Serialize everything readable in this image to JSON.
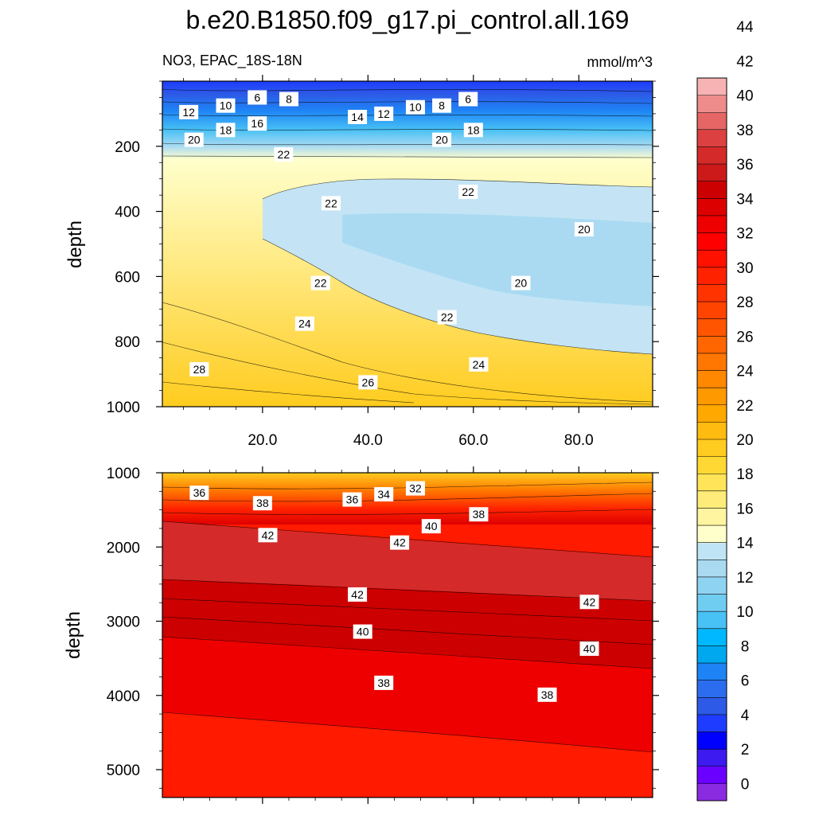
{
  "figure": {
    "title": "b.e20.B1850.f09_g17.pi_control.all.169",
    "variable_label": "NO3, EPAC_18S-18N",
    "units_label": "mmol/m^3"
  },
  "chart_data": {
    "type": "contour",
    "title": "b.e20.B1850.f09_g17.pi_control.all.169",
    "subtitle": "NO3, EPAC_18S-18N",
    "units": "mmol/m^3",
    "x_range": [
      1,
      94
    ],
    "x_ticks": [
      20,
      40,
      60,
      80
    ],
    "x_tick_labels": [
      "20.0",
      "40.0",
      "60.0",
      "80.0"
    ],
    "panels": [
      {
        "ylabel": "depth",
        "ylim": [
          1000,
          0
        ],
        "y_ticks": [
          200,
          400,
          600,
          800,
          1000
        ],
        "y_tick_labels": [
          "200",
          "400",
          "600",
          "800",
          "1000"
        ],
        "contour_labels": [
          {
            "x": 6,
            "y": 95,
            "v": "12"
          },
          {
            "x": 13,
            "y": 75,
            "v": "10"
          },
          {
            "x": 19,
            "y": 50,
            "v": "6"
          },
          {
            "x": 25,
            "y": 55,
            "v": "8"
          },
          {
            "x": 13,
            "y": 150,
            "v": "18"
          },
          {
            "x": 19,
            "y": 130,
            "v": "16"
          },
          {
            "x": 38,
            "y": 110,
            "v": "14"
          },
          {
            "x": 43,
            "y": 100,
            "v": "12"
          },
          {
            "x": 49,
            "y": 80,
            "v": "10"
          },
          {
            "x": 54,
            "y": 75,
            "v": "8"
          },
          {
            "x": 59,
            "y": 55,
            "v": "6"
          },
          {
            "x": 7,
            "y": 180,
            "v": "20"
          },
          {
            "x": 54,
            "y": 180,
            "v": "20"
          },
          {
            "x": 60,
            "y": 150,
            "v": "18"
          },
          {
            "x": 24,
            "y": 225,
            "v": "22"
          },
          {
            "x": 33,
            "y": 375,
            "v": "22"
          },
          {
            "x": 59,
            "y": 340,
            "v": "22"
          },
          {
            "x": 81,
            "y": 455,
            "v": "20"
          },
          {
            "x": 31,
            "y": 620,
            "v": "22"
          },
          {
            "x": 69,
            "y": 620,
            "v": "20"
          },
          {
            "x": 28,
            "y": 745,
            "v": "24"
          },
          {
            "x": 55,
            "y": 725,
            "v": "22"
          },
          {
            "x": 61,
            "y": 870,
            "v": "24"
          },
          {
            "x": 8,
            "y": 885,
            "v": "28"
          },
          {
            "x": 40,
            "y": 925,
            "v": "26"
          }
        ]
      },
      {
        "ylabel": "depth",
        "ylim": [
          5375,
          1000
        ],
        "y_ticks": [
          1000,
          2000,
          3000,
          4000,
          5000
        ],
        "y_tick_labels": [
          "1000",
          "2000",
          "3000",
          "4000",
          "5000"
        ],
        "contour_labels": [
          {
            "x": 8,
            "y": 1270,
            "v": "36"
          },
          {
            "x": 20,
            "y": 1410,
            "v": "38"
          },
          {
            "x": 37,
            "y": 1360,
            "v": "36"
          },
          {
            "x": 43,
            "y": 1290,
            "v": "34"
          },
          {
            "x": 49,
            "y": 1210,
            "v": "32"
          },
          {
            "x": 61,
            "y": 1560,
            "v": "38"
          },
          {
            "x": 52,
            "y": 1720,
            "v": "40"
          },
          {
            "x": 21,
            "y": 1840,
            "v": "42"
          },
          {
            "x": 46,
            "y": 1940,
            "v": "42"
          },
          {
            "x": 38,
            "y": 2640,
            "v": "42"
          },
          {
            "x": 82,
            "y": 2740,
            "v": "42"
          },
          {
            "x": 39,
            "y": 3140,
            "v": "40"
          },
          {
            "x": 82,
            "y": 3370,
            "v": "40"
          },
          {
            "x": 43,
            "y": 3830,
            "v": "38"
          },
          {
            "x": 74,
            "y": 3990,
            "v": "38"
          }
        ]
      }
    ],
    "colorbar": {
      "levels": [
        0,
        2,
        4,
        6,
        8,
        10,
        12,
        14,
        16,
        18,
        20,
        22,
        24,
        26,
        28,
        30,
        32,
        34,
        36,
        38,
        40,
        42,
        44
      ],
      "tick_labels": [
        "0",
        "2",
        "4",
        "6",
        "8",
        "10",
        "12",
        "14",
        "16",
        "18",
        "20",
        "22",
        "24",
        "26",
        "28",
        "30",
        "32",
        "34",
        "36",
        "38",
        "40",
        "42",
        "44"
      ],
      "colors": [
        "#8a2be2",
        "#6a00ff",
        "#3d1af0",
        "#0000ff",
        "#1e3cff",
        "#2d5ae6",
        "#2c6df0",
        "#1e84f5",
        "#00a8f0",
        "#00b8ff",
        "#48c1f5",
        "#70cdf2",
        "#8fd3f2",
        "#a9daf2",
        "#bfe4f5",
        "#ffffcc",
        "#fff4a0",
        "#ffeb7a",
        "#ffe45a",
        "#ffd833",
        "#ffcc1f",
        "#ffbb0f",
        "#ffa800",
        "#ff9900",
        "#ff8800",
        "#ff7700",
        "#ff6600",
        "#ff5500",
        "#ff4400",
        "#ff3300",
        "#ff2200",
        "#ff1100",
        "#ff0000",
        "#ee0000",
        "#dd0000",
        "#cc0000",
        "#cc1a1a",
        "#d42a2a",
        "#dd4040",
        "#e66666",
        "#ee8c8c",
        "#f7b3b3"
      ]
    }
  }
}
